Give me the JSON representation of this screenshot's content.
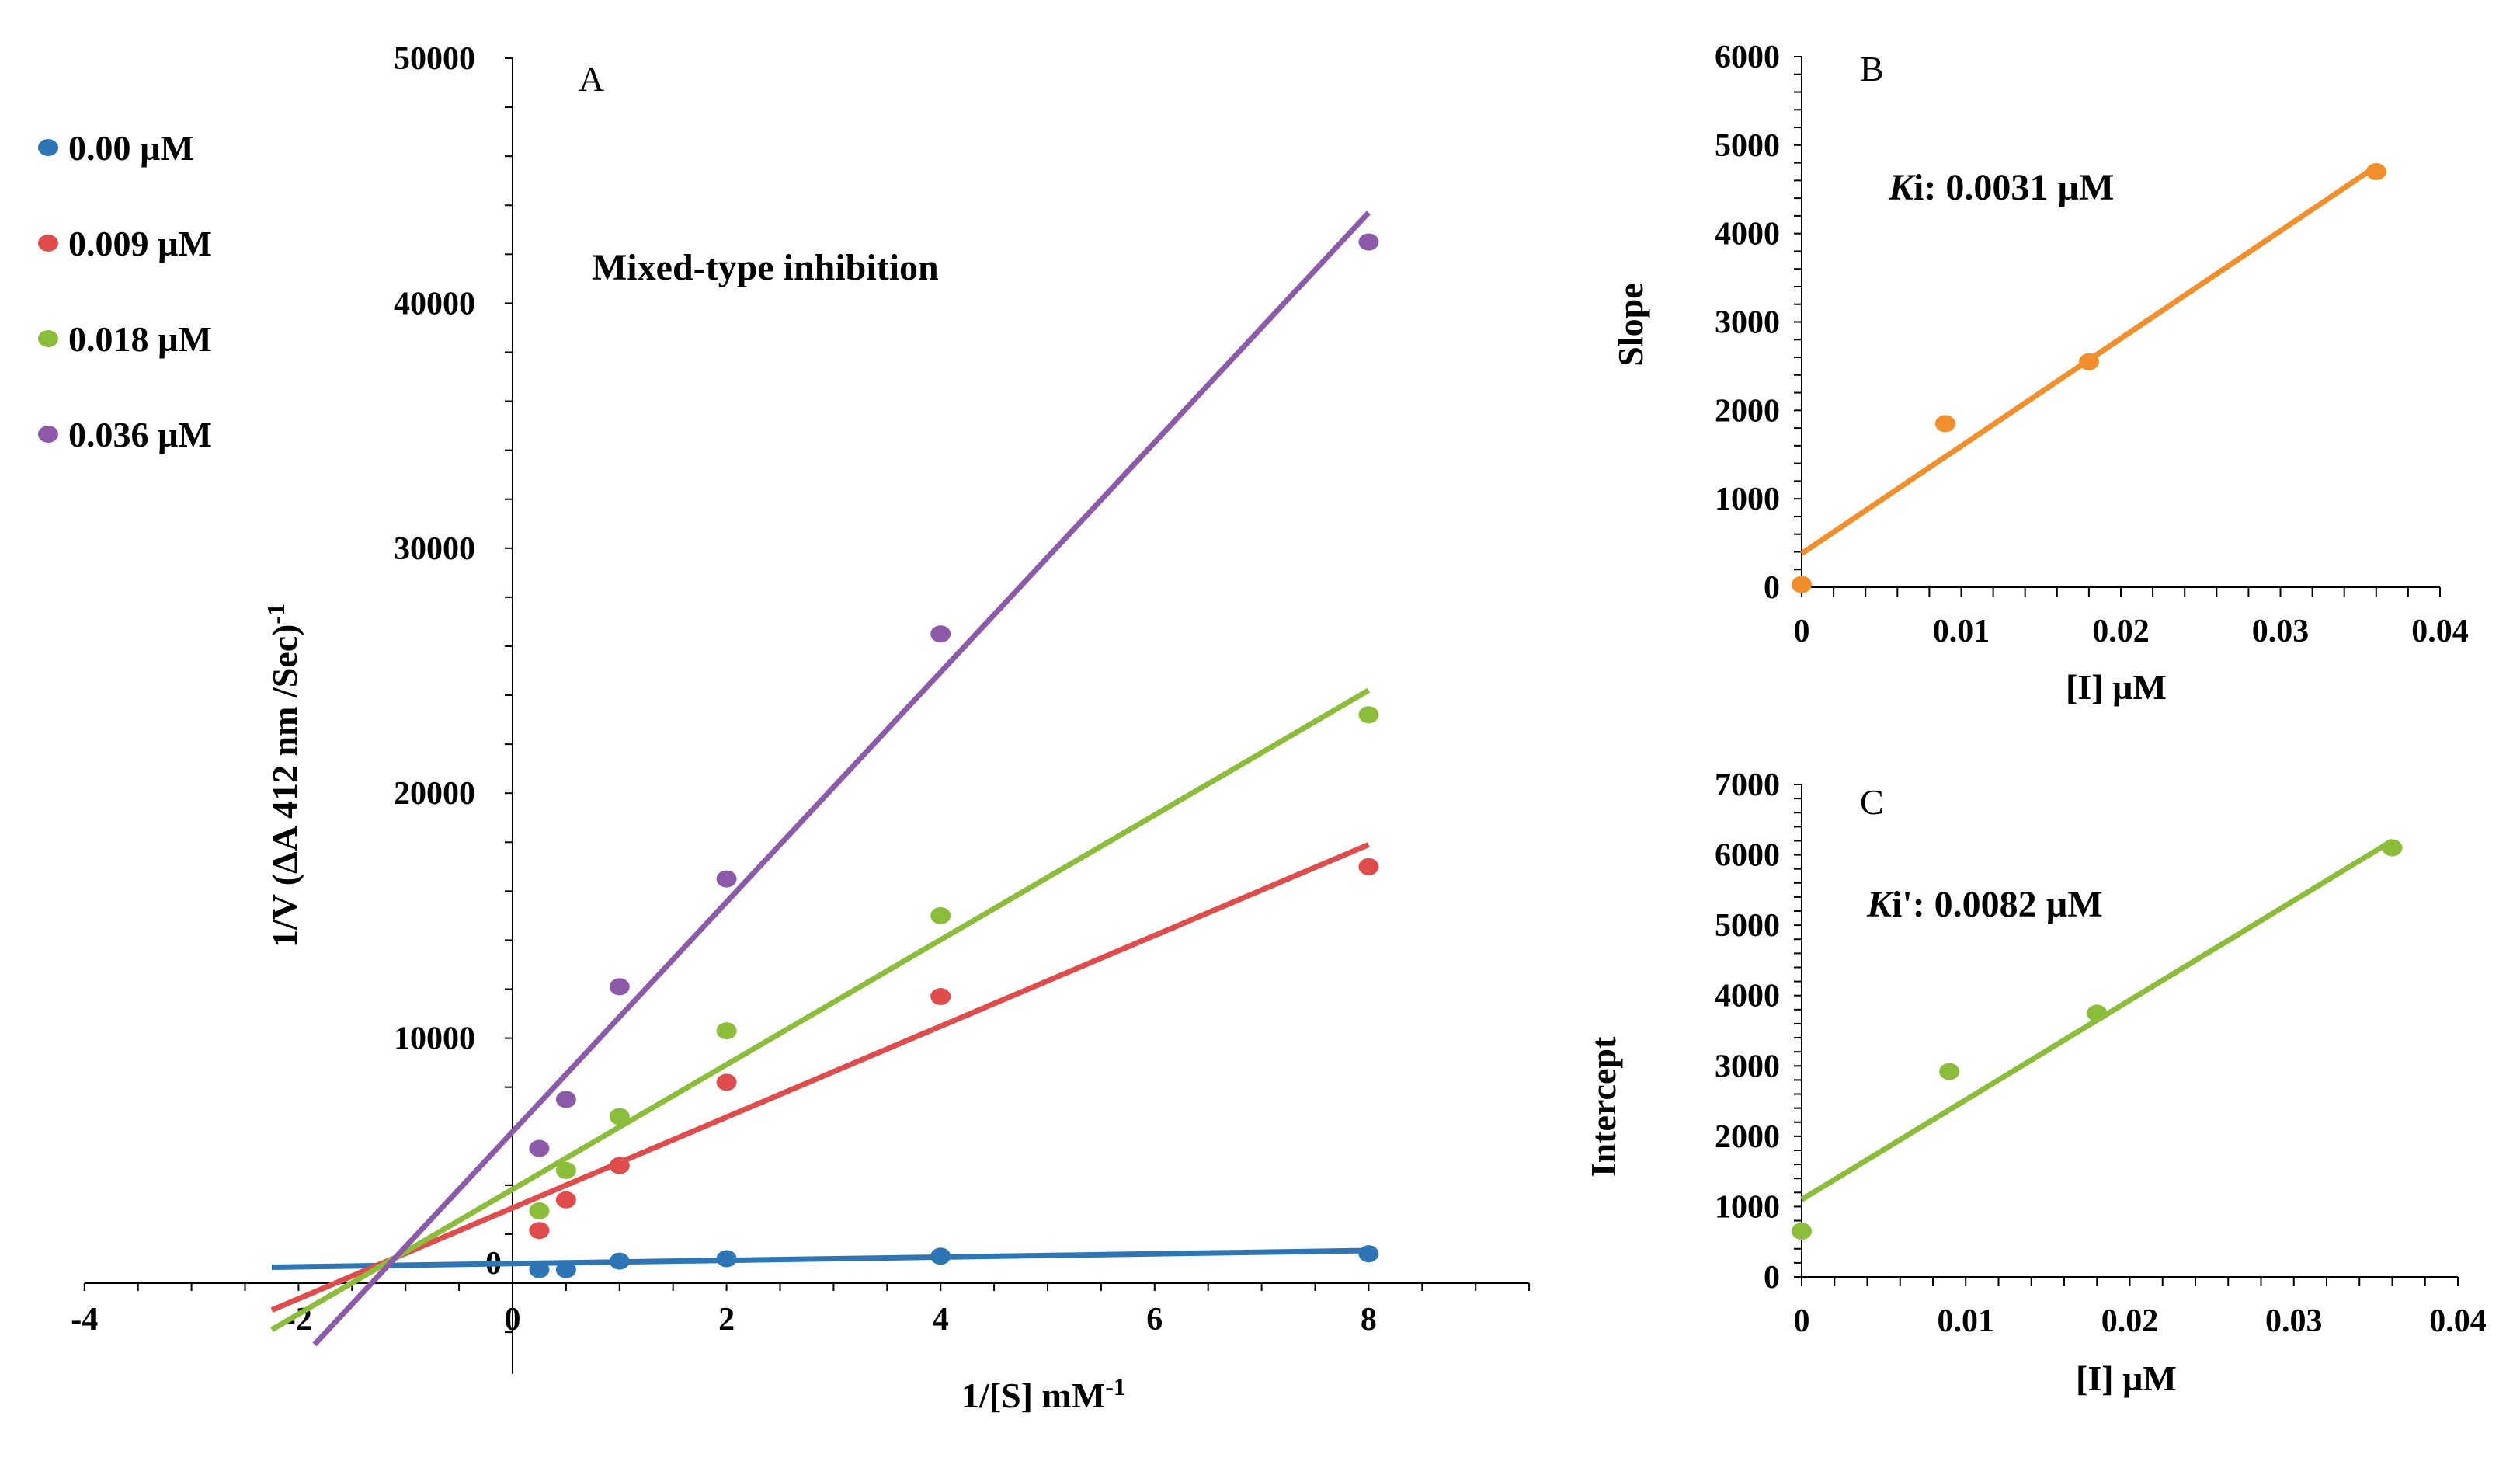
{
  "chart_data": [
    {
      "panel": "A",
      "type": "scatter",
      "title": "Mixed-type inhibition",
      "xlabel": "1/[S] mM",
      "xlabel_sup": "-1",
      "ylabel": "1/V (ΔA 412 nm /Sec)",
      "ylabel_sup": "-1",
      "xlim": [
        -4,
        9.5
      ],
      "ylim": [
        -3700,
        50000
      ],
      "xticks": [
        -4,
        -2,
        0,
        2,
        4,
        6,
        8
      ],
      "yticks": [
        0,
        10000,
        20000,
        30000,
        40000,
        50000
      ],
      "x": [
        0.25,
        0.5,
        1,
        2,
        4,
        8
      ],
      "legend_position": "left",
      "series": [
        {
          "name": "0.00 µM",
          "color": "#2e75b6",
          "values": [
            550,
            550,
            900,
            1000,
            1100,
            1200
          ],
          "fit": {
            "x": [
              -2.25,
              8
            ],
            "y": [
              650,
              1330
            ]
          }
        },
        {
          "name": "0.009 µM",
          "color": "#e04b4b",
          "values": [
            2150,
            3400,
            4800,
            8200,
            11700,
            17000
          ],
          "fit": {
            "x": [
              -2.25,
              8
            ],
            "y": [
              -1100,
              17900
            ]
          }
        },
        {
          "name": "0.018 µM",
          "color": "#8cbd3a",
          "values": [
            2950,
            4600,
            6800,
            10300,
            15000,
            23200
          ],
          "fit": {
            "x": [
              -2.25,
              8
            ],
            "y": [
              -1900,
              24200
            ]
          }
        },
        {
          "name": "0.036 µM",
          "color": "#8c5aa8",
          "values": [
            5500,
            7500,
            12100,
            16500,
            26500,
            42500
          ],
          "fit": {
            "x": [
              -1.85,
              8
            ],
            "y": [
              -2500,
              43700
            ]
          }
        }
      ]
    },
    {
      "panel": "B",
      "type": "scatter",
      "xlabel": "[I] µM",
      "ylabel": "Slope",
      "annotation_italic": "K",
      "annotation_rest": "i: 0.0031 µM",
      "xlim": [
        0,
        0.04
      ],
      "ylim": [
        0,
        6000
      ],
      "xticks": [
        "0",
        "0.01",
        "0.02",
        "0.03",
        "0.04"
      ],
      "xtick_values": [
        0,
        0.01,
        0.02,
        0.03,
        0.04
      ],
      "yticks": [
        0,
        1000,
        2000,
        3000,
        4000,
        5000,
        6000
      ],
      "color": "#f28e2b",
      "x": [
        0,
        0.009,
        0.018,
        0.036
      ],
      "y": [
        30,
        1850,
        2550,
        4700
      ],
      "fit": {
        "x": [
          0,
          0.036
        ],
        "y": [
          380,
          4760
        ]
      }
    },
    {
      "panel": "C",
      "type": "scatter",
      "xlabel": "[I] µM",
      "ylabel": "Intercept",
      "annotation_italic": "K",
      "annotation_rest": "i': 0.0082 µM",
      "xlim": [
        0,
        0.04
      ],
      "ylim": [
        0,
        7000
      ],
      "xticks": [
        "0",
        "0.01",
        "0.02",
        "0.03",
        "0.04"
      ],
      "xtick_values": [
        0,
        0.01,
        0.02,
        0.03,
        0.04
      ],
      "yticks": [
        0,
        1000,
        2000,
        3000,
        4000,
        5000,
        6000,
        7000
      ],
      "color": "#8cbd3a",
      "x": [
        0,
        0.009,
        0.018,
        0.036
      ],
      "y": [
        650,
        2920,
        3750,
        6100
      ],
      "fit": {
        "x": [
          0,
          0.036
        ],
        "y": [
          1100,
          6200
        ]
      }
    }
  ]
}
